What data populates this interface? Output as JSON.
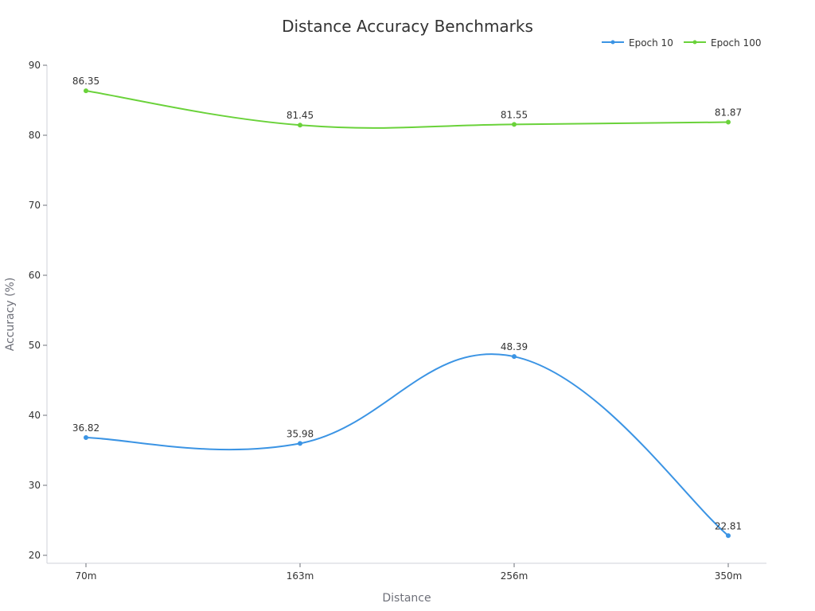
{
  "chart_data": {
    "type": "line",
    "title": "Distance Accuracy Benchmarks",
    "xlabel": "Distance",
    "ylabel": "Accuracy (%)",
    "categories": [
      "70m",
      "163m",
      "256m",
      "350m"
    ],
    "ylim": [
      20,
      90
    ],
    "yticks": [
      20,
      30,
      40,
      50,
      60,
      70,
      80,
      90
    ],
    "grid": false,
    "smooth": true,
    "legend_position": "top-right",
    "series": [
      {
        "name": "Epoch 10",
        "color": "#3b94e4",
        "values": [
          36.82,
          35.98,
          48.39,
          22.81
        ],
        "labels": [
          "36.82",
          "35.98",
          "48.39",
          "22.81"
        ]
      },
      {
        "name": "Epoch 100",
        "color": "#6ad23a",
        "values": [
          86.35,
          81.45,
          81.55,
          81.87
        ],
        "labels": [
          "86.35",
          "81.45",
          "81.55",
          "81.87"
        ]
      }
    ]
  }
}
